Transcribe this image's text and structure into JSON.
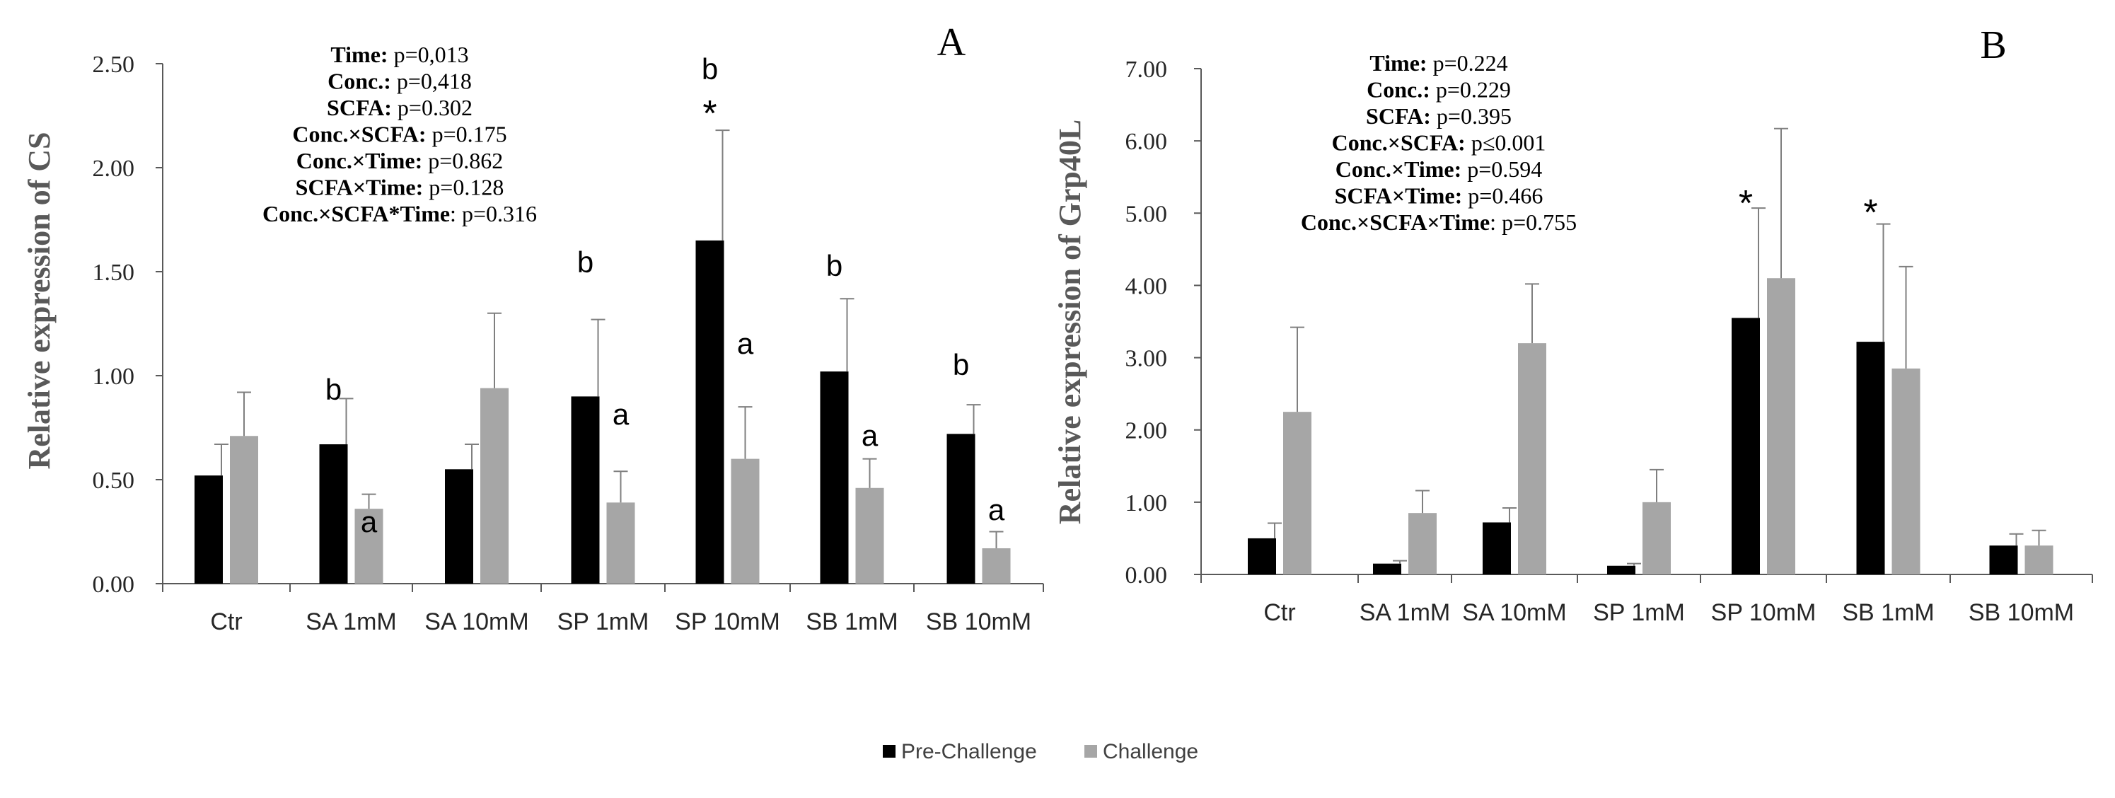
{
  "chart_data": [
    {
      "type": "bar",
      "panel_label": "A",
      "ylabel": "Relative expression of CS",
      "ylim": [
        0,
        2.5
      ],
      "yticks": [
        "0.00",
        "0.50",
        "1.00",
        "1.50",
        "2.00",
        "2.50"
      ],
      "categories": [
        "Ctr",
        "SA 1mM",
        "SA 10mM",
        "SP 1mM",
        "SP 10mM",
        "SB 1mM",
        "SB 10mM"
      ],
      "series": [
        {
          "name": "Pre-Challenge",
          "color": "#000000",
          "values": [
            0.52,
            0.67,
            0.55,
            0.9,
            1.65,
            1.02,
            0.72
          ],
          "errors": [
            0.15,
            0.22,
            0.12,
            0.37,
            0.53,
            0.35,
            0.14
          ]
        },
        {
          "name": "Challenge",
          "color": "#a6a6a6",
          "values": [
            0.71,
            0.36,
            0.94,
            0.39,
            0.6,
            0.46,
            0.17
          ],
          "errors": [
            0.21,
            0.07,
            0.36,
            0.15,
            0.25,
            0.14,
            0.08
          ]
        }
      ],
      "annotations": [
        {
          "category": 1,
          "series": 0,
          "text": "b"
        },
        {
          "category": 1,
          "series": 1,
          "text": "a"
        },
        {
          "category": 3,
          "series": 0,
          "text": "b"
        },
        {
          "category": 3,
          "series": 1,
          "text": "a"
        },
        {
          "category": 4,
          "series": 0,
          "text": "b"
        },
        {
          "category": 4,
          "series": 0,
          "text": "*"
        },
        {
          "category": 4,
          "series": 1,
          "text": "a"
        },
        {
          "category": 5,
          "series": 0,
          "text": "b"
        },
        {
          "category": 5,
          "series": 1,
          "text": "a"
        },
        {
          "category": 6,
          "series": 0,
          "text": "b"
        },
        {
          "category": 6,
          "series": 1,
          "text": "a"
        }
      ],
      "stats": [
        {
          "key": "Time:",
          "value": " p=0,013"
        },
        {
          "key": "Conc.:",
          "value": " p=0,418"
        },
        {
          "key": "SCFA:",
          "value": " p=0.302"
        },
        {
          "key": "Conc.×SCFA:",
          "value": " p=0.175"
        },
        {
          "key": "Conc.×Time:",
          "value": " p=0.862"
        },
        {
          "key": "SCFA×Time:",
          "value": " p=0.128"
        },
        {
          "key": "Conc.×SCFA*Time",
          "value": ": p=0.316"
        }
      ]
    },
    {
      "type": "bar",
      "panel_label": "B",
      "ylabel": "Relative expression of Grp40L",
      "ylim": [
        0,
        7
      ],
      "yticks": [
        "0.00",
        "1.00",
        "2.00",
        "3.00",
        "4.00",
        "5.00",
        "6.00",
        "7.00"
      ],
      "categories": [
        "Ctr",
        "SA 1mM",
        "SA 10mM",
        "SP 1mM",
        "SP 10mM",
        "SB 1mM",
        "SB 10mM"
      ],
      "series": [
        {
          "name": "Pre-Challenge",
          "color": "#000000",
          "values": [
            0.5,
            0.15,
            0.72,
            0.12,
            3.55,
            3.22,
            0.4
          ],
          "errors": [
            0.21,
            0.04,
            0.2,
            0.03,
            1.52,
            1.63,
            0.16
          ]
        },
        {
          "name": "Challenge",
          "color": "#a6a6a6",
          "values": [
            2.25,
            0.85,
            3.2,
            1.0,
            4.1,
            2.85,
            0.4
          ],
          "errors": [
            1.17,
            0.31,
            0.82,
            0.45,
            2.07,
            1.41,
            0.21
          ]
        }
      ],
      "annotations": [
        {
          "category": 4,
          "series": 0,
          "text": "*"
        },
        {
          "category": 5,
          "series": 0,
          "text": "*"
        }
      ],
      "stats": [
        {
          "key": "Time:",
          "value": " p=0.224"
        },
        {
          "key": "Conc.:",
          "value": " p=0.229"
        },
        {
          "key": "SCFA:",
          "value": " p=0.395"
        },
        {
          "key": "Conc.×SCFA:",
          "value": " p≤0.001"
        },
        {
          "key": "Conc.×Time:",
          "value": " p=0.594"
        },
        {
          "key": "SCFA×Time:",
          "value": " p=0.466"
        },
        {
          "key": "Conc.×SCFA×Time",
          "value": ": p=0.755"
        }
      ]
    }
  ],
  "legend": [
    {
      "label": "Pre-Challenge",
      "color": "#000000"
    },
    {
      "label": "Challenge",
      "color": "#a6a6a6"
    }
  ]
}
